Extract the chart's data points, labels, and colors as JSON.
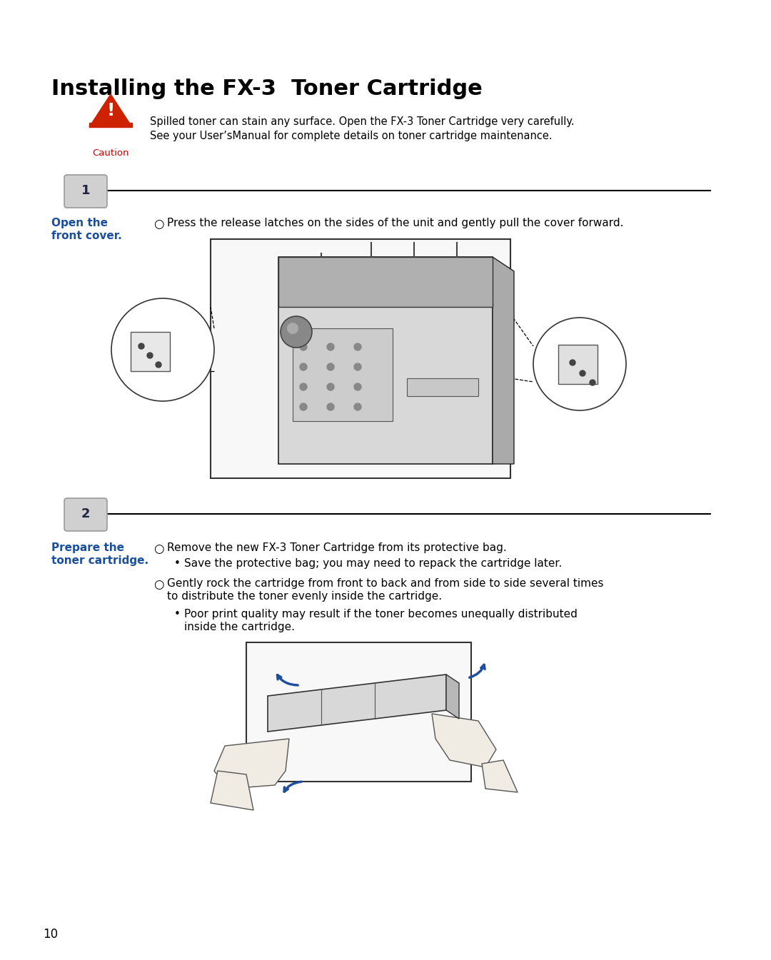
{
  "bg_color": "#ffffff",
  "title": "Installing the FX-3  Toner Cartridge",
  "title_fontsize": 22,
  "title_color": "#000000",
  "caution_text1": "Spilled toner can stain any surface. Open the FX-3 Toner Cartridge very carefully.",
  "caution_text2": "See your User’sManual for complete details on toner cartridge maintenance.",
  "caution_label": "Caution",
  "caution_fontsize": 10.5,
  "caution_label_color": "#cc0000",
  "step1_num": "1",
  "step1_label1": "Open the",
  "step1_label2": "front cover.",
  "step1_label_color": "#1a4f9e",
  "step1_text": "Press the release latches on the sides of the unit and gently pull the cover forward.",
  "step2_num": "2",
  "step2_label1": "Prepare the",
  "step2_label2": "toner cartridge.",
  "step2_label_color": "#1a4f9e",
  "step2_text1": "Remove the new FX-3 Toner Cartridge from its protective bag.",
  "step2_sub1": "Save the protective bag; you may need to repack the cartridge later.",
  "step2_text2a": "Gently rock the cartridge from front to back and from side to side several times",
  "step2_text2b": "to distribute the toner evenly inside the cartridge.",
  "step2_sub2a": "Poor print quality may result if the toner becomes unequally distributed",
  "step2_sub2b": "inside the cartridge.",
  "page_num": "10",
  "body_fontsize": 11,
  "label_fontsize": 11,
  "step_num_fontsize": 13,
  "arrow_color": "#1f4e9c",
  "line_color": "#000000",
  "badge_face": "#d0d0d0",
  "badge_edge": "#999999"
}
